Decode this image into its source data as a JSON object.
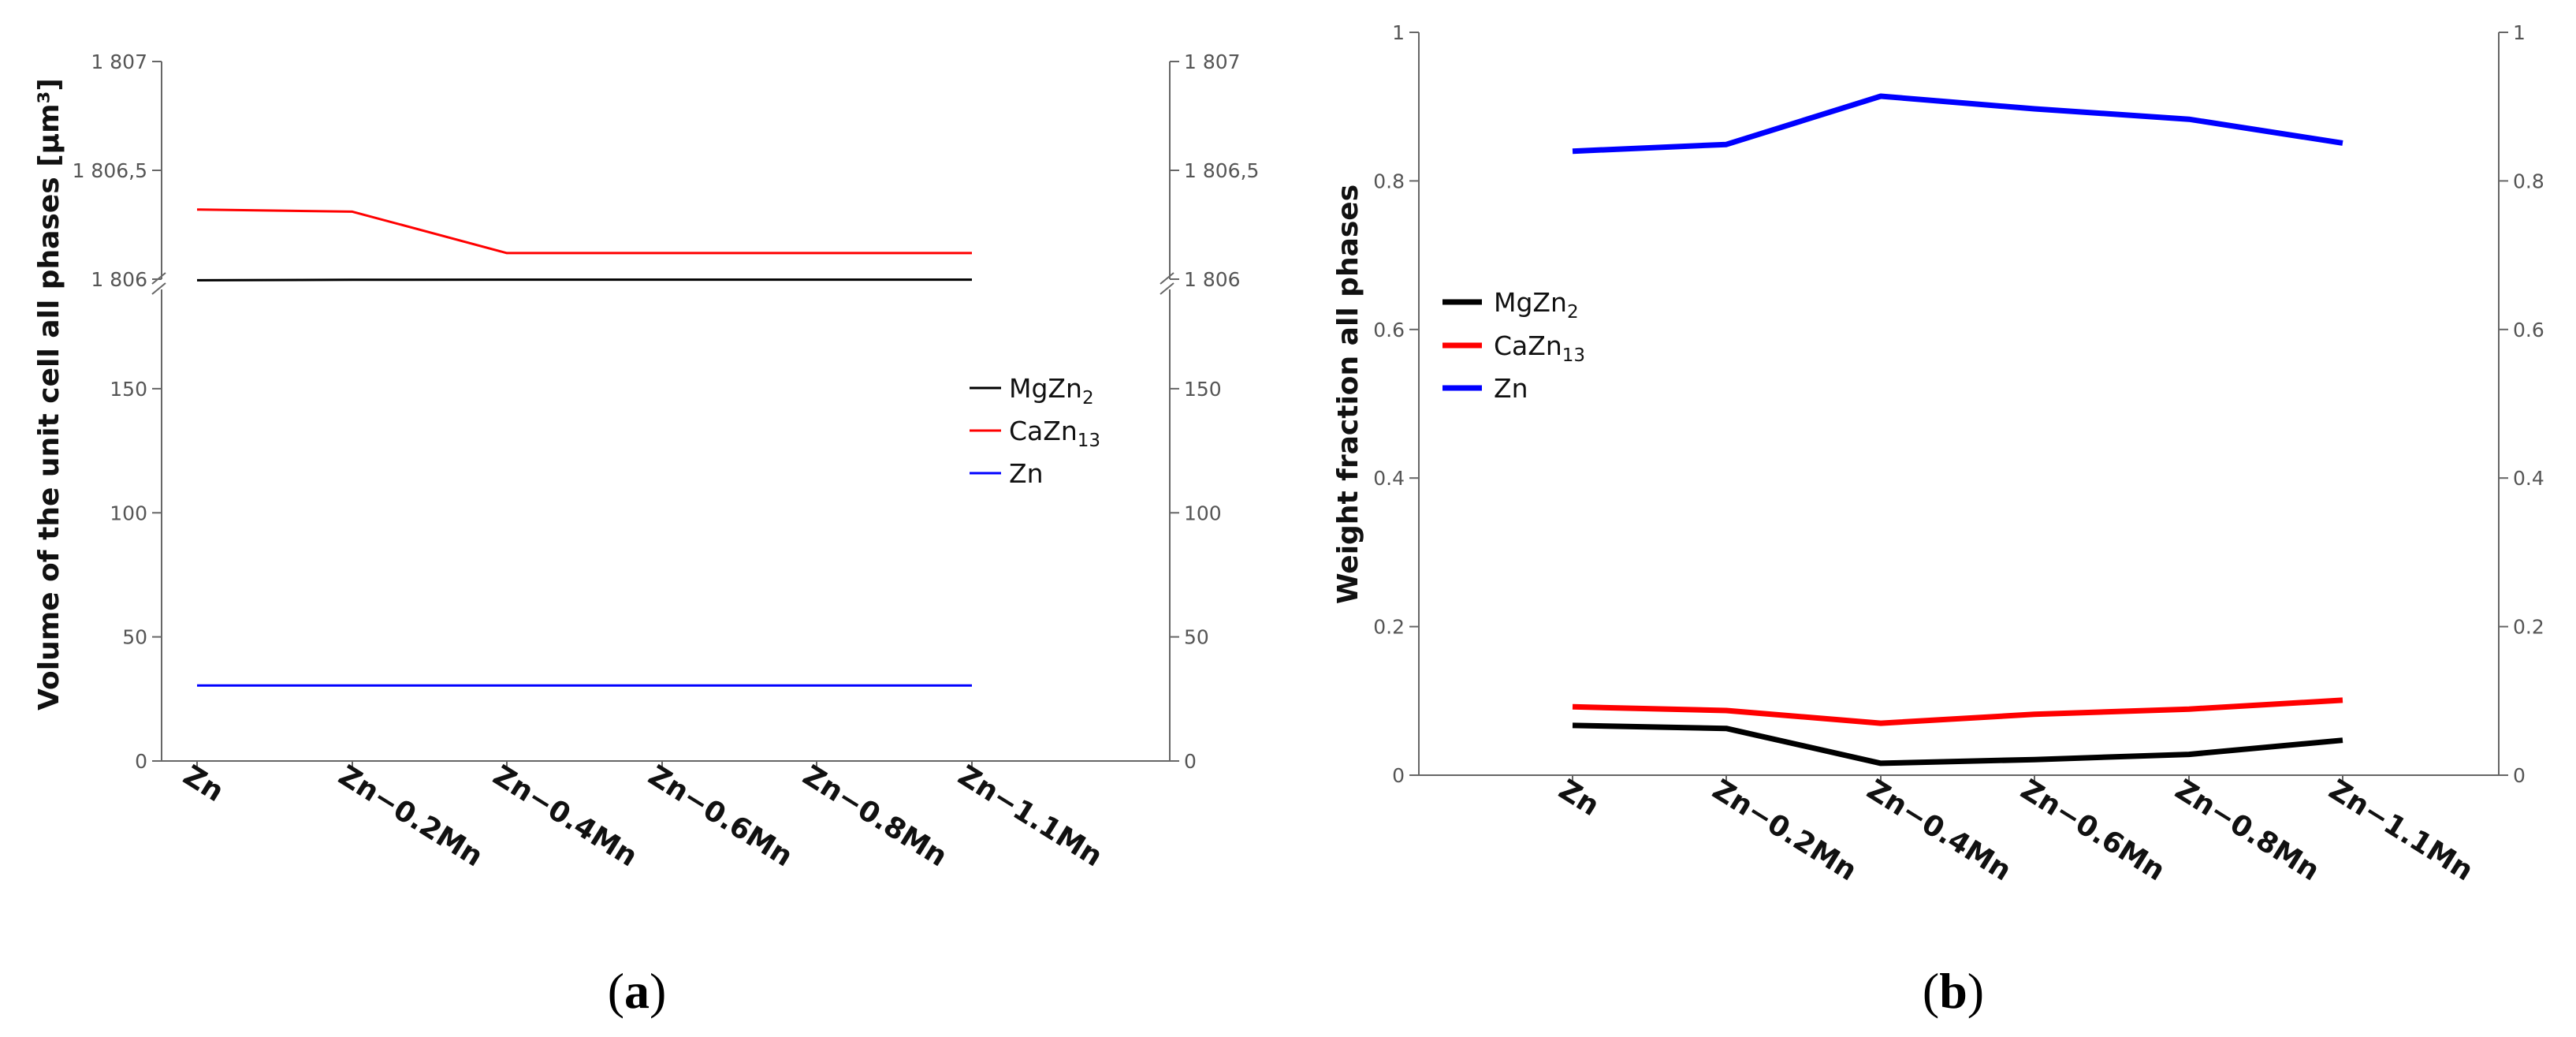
{
  "chart_data": [
    {
      "panel": "a",
      "type": "line",
      "ylabel": "Volume of the unit cell all phases [μm³]",
      "categories": [
        "Zn",
        "Zn−0.2Mn",
        "Zn−0.4Mn",
        "Zn−0.6Mn",
        "Zn−0.8Mn",
        "Zn−1.1Mn"
      ],
      "axis_break": true,
      "lower_range": [
        0,
        190
      ],
      "lower_ticks": [
        "0",
        "50",
        "100",
        "150"
      ],
      "lower_tick_values": [
        0,
        50,
        100,
        150
      ],
      "upper_range": [
        1806,
        1807
      ],
      "upper_ticks": [
        "1 806",
        "1 806,5",
        "1 807"
      ],
      "upper_tick_values": [
        1806,
        1806.5,
        1807
      ],
      "series": [
        {
          "name": "MgZn2",
          "base": "MgZn",
          "sub": "2",
          "color": "#000000",
          "width": 3,
          "values": [
            1805.995,
            1805.997,
            1805.998,
            1805.998,
            1805.998,
            1805.998
          ]
        },
        {
          "name": "CaZn13",
          "base": "CaZn",
          "sub": "13",
          "color": "#ff0000",
          "width": 3,
          "values": [
            1806.32,
            1806.31,
            1806.12,
            1806.12,
            1806.12,
            1806.12
          ]
        },
        {
          "name": "Zn",
          "base": "Zn",
          "sub": "",
          "color": "#0000ff",
          "width": 3,
          "values": [
            30.4,
            30.4,
            30.4,
            30.4,
            30.4,
            30.4
          ]
        }
      ],
      "legend": "right"
    },
    {
      "panel": "b",
      "type": "line",
      "ylabel": "Weight fraction all phases",
      "categories": [
        "Zn",
        "Zn−0.2Mn",
        "Zn−0.4Mn",
        "Zn−0.6Mn",
        "Zn−0.8Mn",
        "Zn−1.1Mn"
      ],
      "ylim": [
        0,
        1
      ],
      "ticks": [
        "0",
        "0.2",
        "0.4",
        "0.6",
        "0.8",
        "1"
      ],
      "tick_values": [
        0,
        0.2,
        0.4,
        0.6,
        0.8,
        1
      ],
      "series": [
        {
          "name": "MgZn2",
          "base": "MgZn",
          "sub": "2",
          "color": "#000000",
          "width": 7,
          "values": [
            0.067,
            0.063,
            0.016,
            0.021,
            0.028,
            0.047
          ]
        },
        {
          "name": "CaZn13",
          "base": "CaZn",
          "sub": "13",
          "color": "#ff0000",
          "width": 7,
          "values": [
            0.092,
            0.087,
            0.07,
            0.082,
            0.089,
            0.101
          ]
        },
        {
          "name": "Zn",
          "base": "Zn",
          "sub": "",
          "color": "#0000ff",
          "width": 7,
          "values": [
            0.84,
            0.849,
            0.914,
            0.897,
            0.883,
            0.851
          ]
        }
      ],
      "legend": "left"
    }
  ],
  "captions": {
    "a": "a",
    "b": "b"
  }
}
